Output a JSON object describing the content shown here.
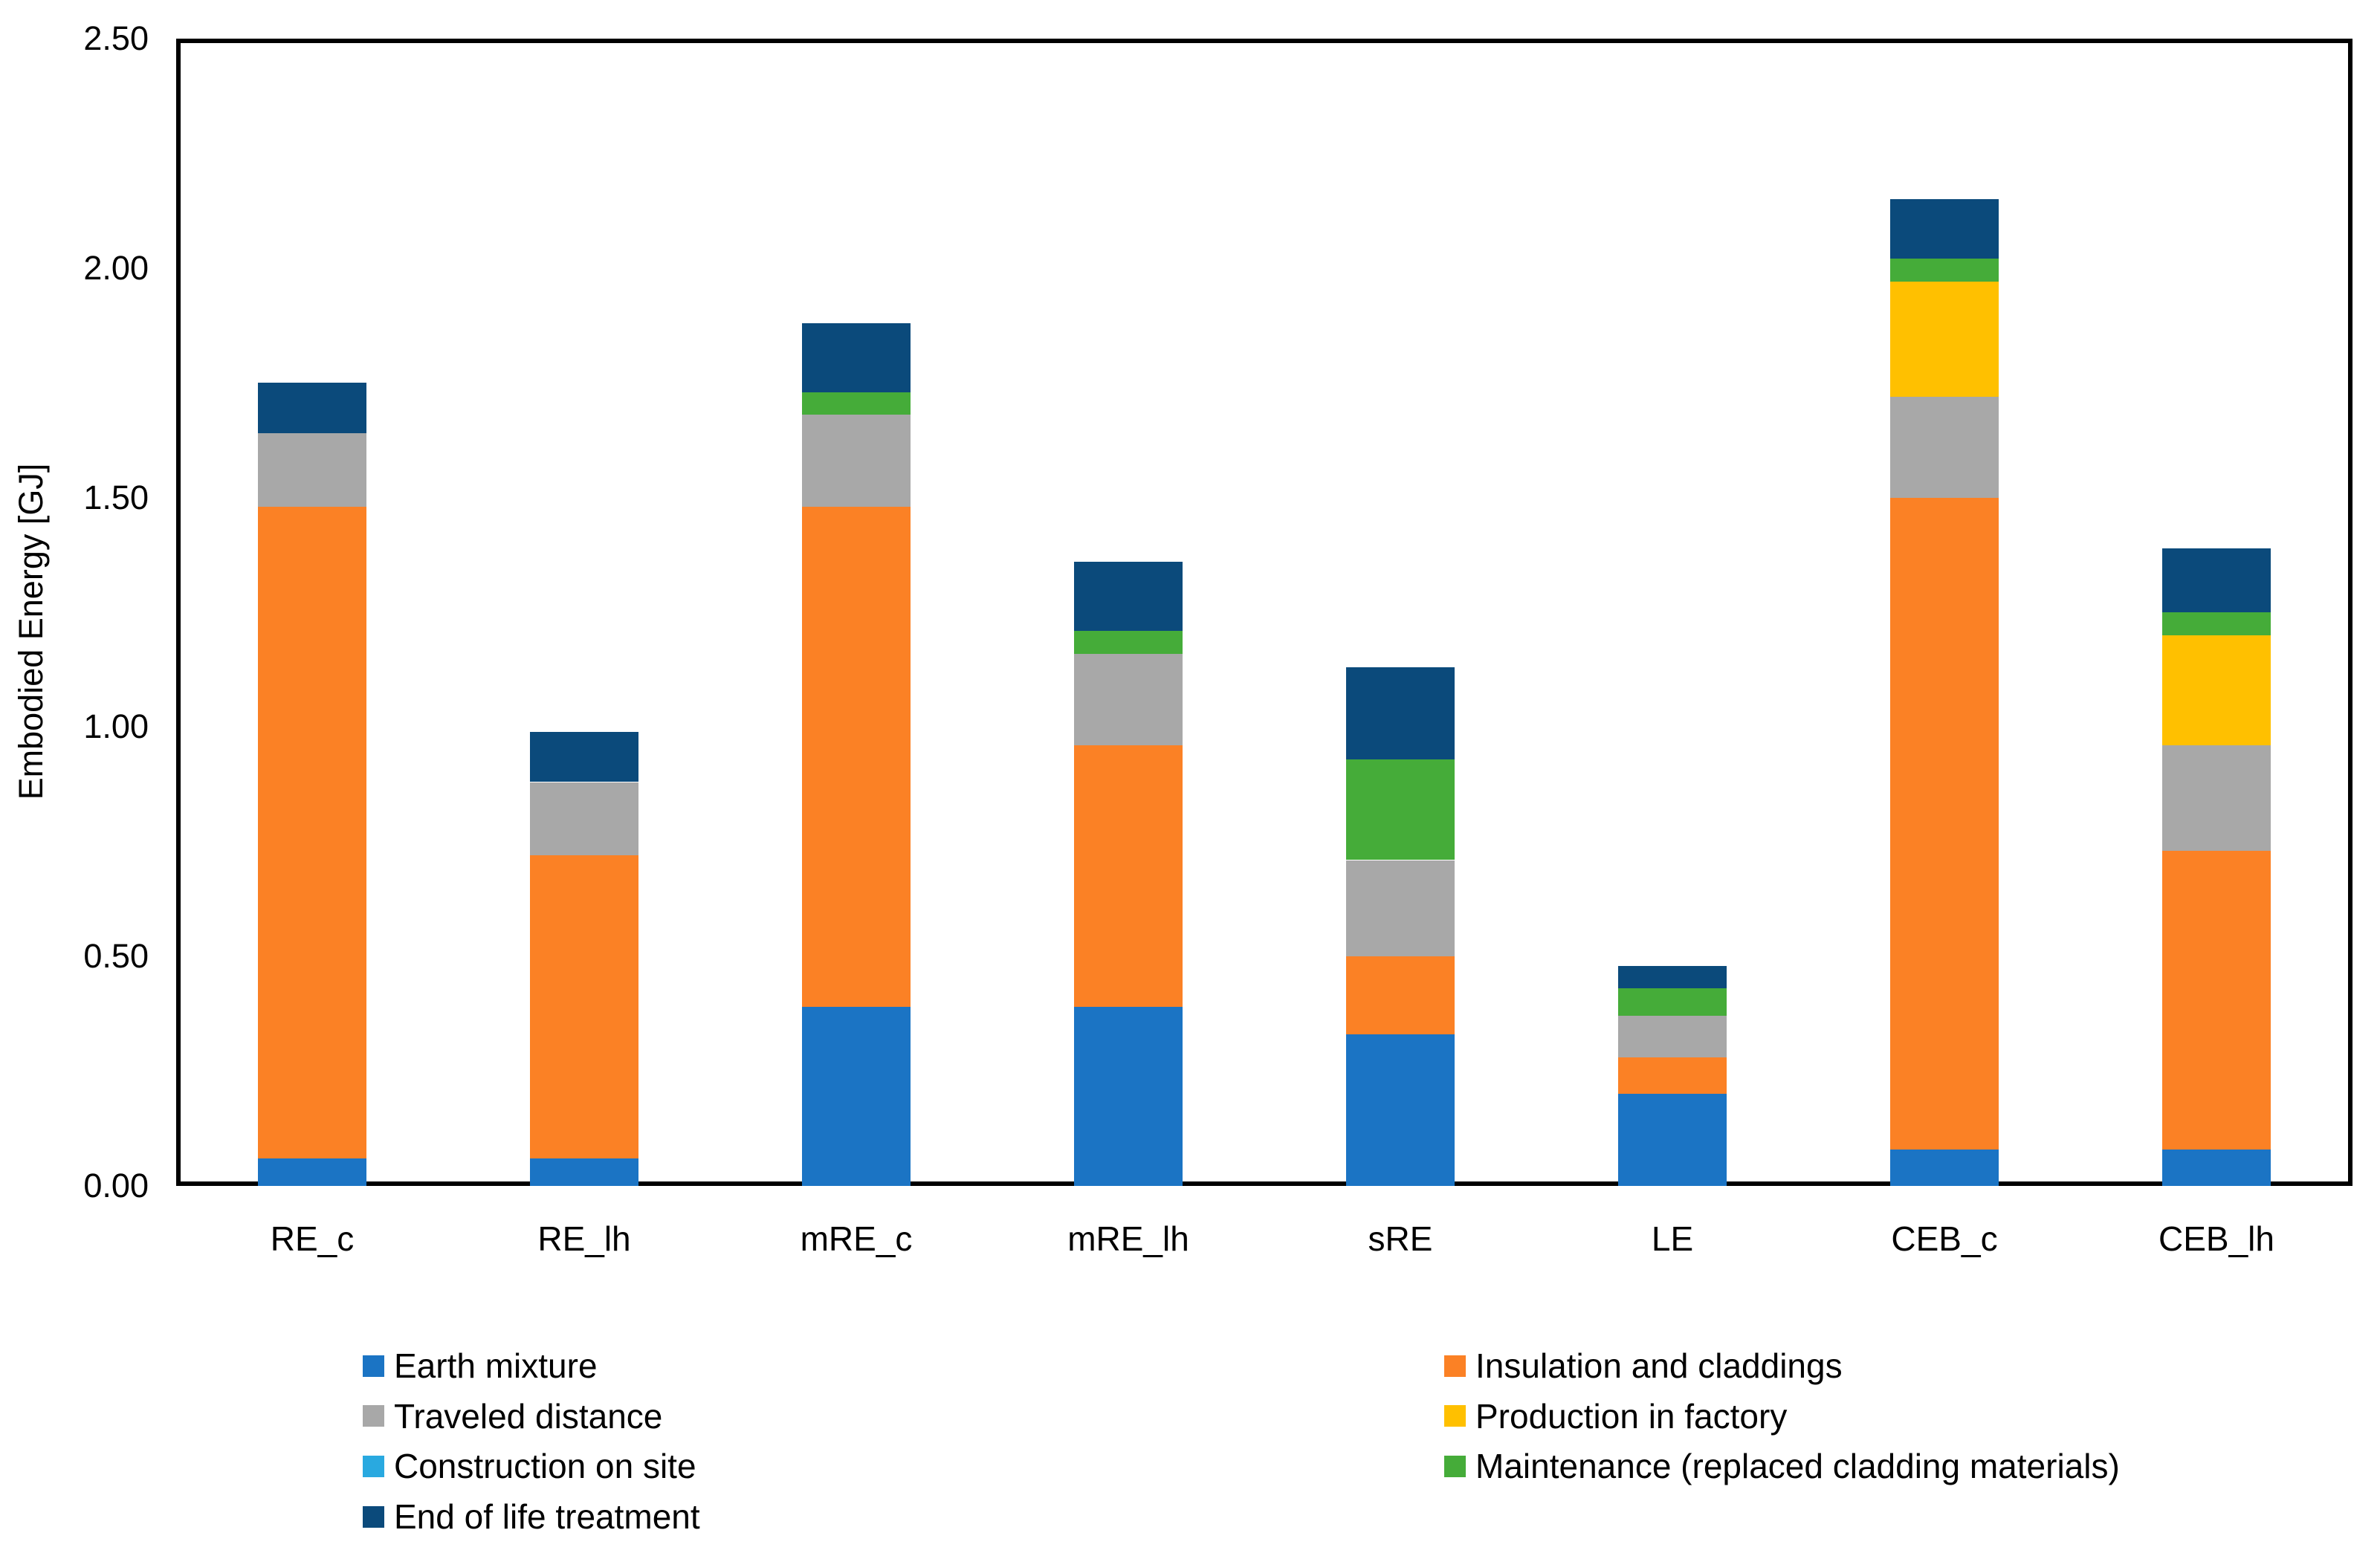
{
  "chart_data": {
    "type": "bar",
    "stacked": true,
    "title": "",
    "xlabel": "",
    "ylabel": "Embodied Energy [GJ]",
    "ylim": [
      0,
      2.5
    ],
    "ytick_values": [
      0,
      0.5,
      1.0,
      1.5,
      2.0,
      2.5
    ],
    "ytick_labels": [
      "0.00",
      "0.50",
      "1.00",
      "1.50",
      "2.00",
      "2.50"
    ],
    "grid": false,
    "legend_position": "bottom-two-columns",
    "categories": [
      "RE_c",
      "RE_lh",
      "mRE_c",
      "mRE_lh",
      "sRE",
      "LE",
      "CEB_c",
      "CEB_lh"
    ],
    "series": [
      {
        "name": "Earth mixture",
        "color": "#1B74C4",
        "values": [
          0.06,
          0.06,
          0.39,
          0.39,
          0.33,
          0.2,
          0.08,
          0.08
        ]
      },
      {
        "name": "Insulation and claddings",
        "color": "#FB8125",
        "values": [
          1.42,
          0.66,
          1.09,
          0.57,
          0.17,
          0.08,
          1.42,
          0.65
        ]
      },
      {
        "name": "Traveled distance",
        "color": "#A8A8A8",
        "values": [
          0.16,
          0.16,
          0.2,
          0.2,
          0.21,
          0.09,
          0.22,
          0.23
        ]
      },
      {
        "name": "Production in factory",
        "color": "#FFC000",
        "values": [
          0,
          0,
          0,
          0,
          0,
          0,
          0.25,
          0.24
        ]
      },
      {
        "name": "Construction on site",
        "color": "#29A9E0",
        "values": [
          0,
          0,
          0,
          0,
          0,
          0,
          0,
          0
        ]
      },
      {
        "name": "Maintenance (replaced cladding materials)",
        "color": "#45AC39",
        "values": [
          0,
          0,
          0.05,
          0.05,
          0.22,
          0.06,
          0.05,
          0.05
        ]
      },
      {
        "name": "End of life treatment",
        "color": "#0B4A7B",
        "values": [
          0.11,
          0.11,
          0.15,
          0.15,
          0.2,
          0.05,
          0.13,
          0.14
        ]
      }
    ],
    "totals": [
      1.75,
      0.99,
      1.88,
      1.36,
      1.13,
      0.48,
      2.15,
      1.39
    ]
  }
}
